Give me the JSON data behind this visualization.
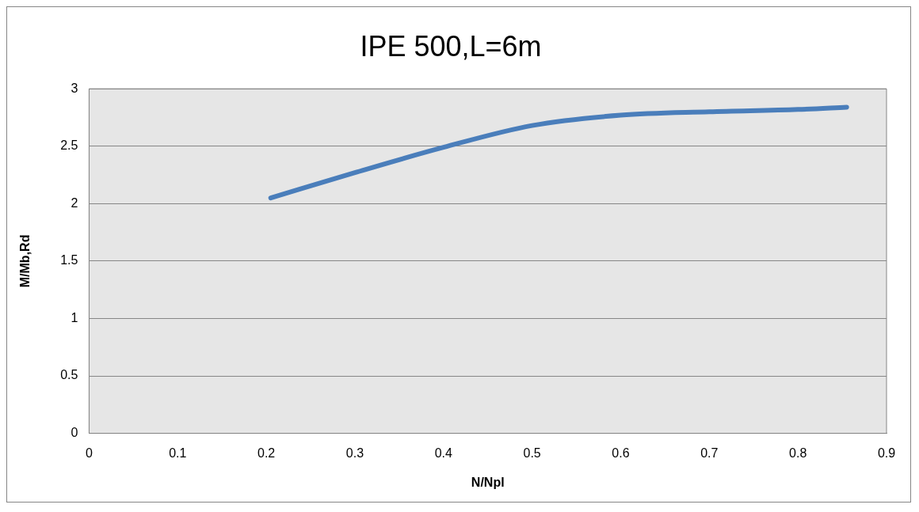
{
  "chart_data": {
    "type": "line",
    "title": "IPE 500,L=6m",
    "xlabel": "N/Npl",
    "ylabel": "M/Mb,Rd",
    "series": [
      {
        "color": "#4a7ebb",
        "x": [
          0.205,
          0.3,
          0.4,
          0.5,
          0.6,
          0.7,
          0.8,
          0.855
        ],
        "values": [
          2.05,
          2.27,
          2.49,
          2.68,
          2.77,
          2.8,
          2.82,
          2.84
        ]
      }
    ],
    "xlim": [
      0,
      0.9
    ],
    "xticks": [
      0,
      0.1,
      0.2,
      0.3,
      0.4,
      0.5,
      0.6,
      0.7,
      0.8,
      0.9
    ],
    "ylim": [
      0,
      3
    ],
    "yticks": [
      0,
      0.5,
      1,
      1.5,
      2,
      2.5,
      3
    ],
    "grid": "y",
    "legend": false,
    "marker": "none",
    "line_style": "solid"
  }
}
